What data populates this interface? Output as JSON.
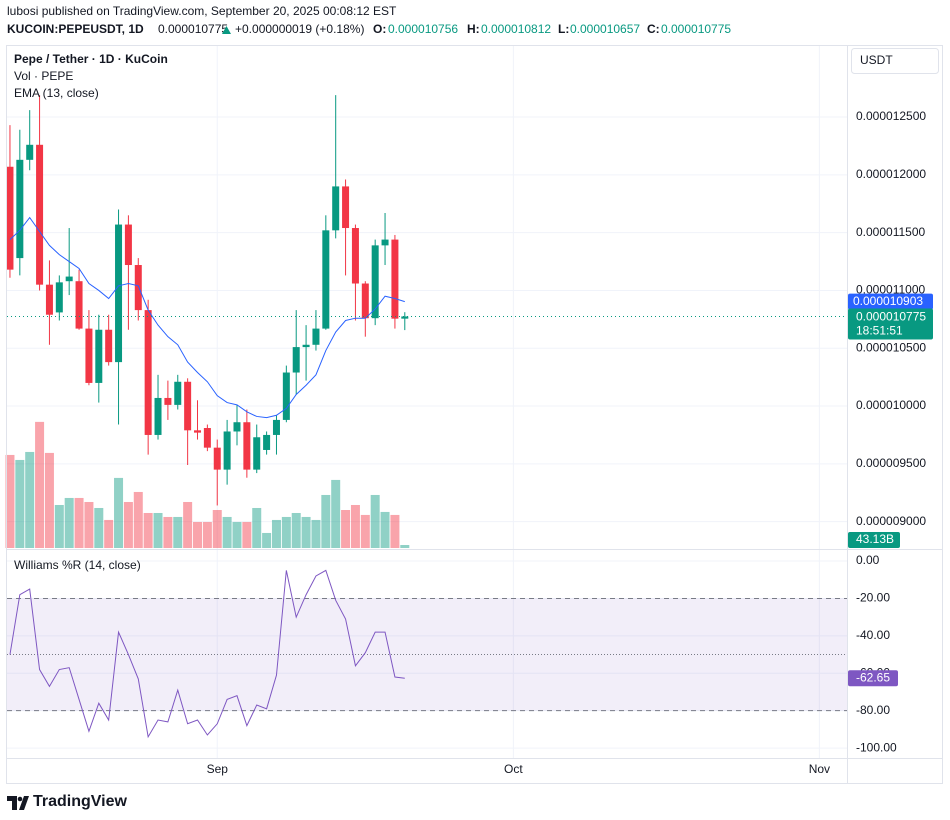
{
  "header": {
    "author_line": "lubosi published on TradingView.com, September 20, 2025 00:08:12 EST",
    "symbol": "KUCOIN:PEPEUSDT, 1D",
    "price": "0.000010775",
    "change": "+0.000000019 (+0.18%)",
    "ohlc": [
      {
        "key": "O:",
        "value": "0.000010756"
      },
      {
        "key": "H:",
        "value": "0.000010812"
      },
      {
        "key": "L:",
        "value": "0.000010657"
      },
      {
        "key": "C:",
        "value": "0.000010775"
      }
    ],
    "currency": "USDT",
    "brand": "TradingView"
  },
  "chart_data": [
    {
      "type": "candlestick",
      "title": "Pepe / Tether · 1D · KuCoin",
      "open": [
        1.207e-05,
        1.128e-05,
        1.213e-05,
        1.226e-05,
        1.105e-05,
        1.081e-05,
        1.108e-05,
        1.108e-05,
        1.067e-05,
        1.02e-05,
        1.066e-05,
        1.038e-05,
        1.157e-05,
        1.122e-05,
        1.083e-05,
        9.75e-06,
        1.007e-05,
        1.001e-05,
        1.021e-05,
        9.79e-06,
        9.81e-06,
        9.64e-06,
        9.45e-06,
        9.78e-06,
        9.86e-06,
        9.45e-06,
        9.62e-06,
        9.75e-06,
        9.88e-06,
        1.029e-05,
        1.051e-05,
        1.053e-05,
        1.067e-05,
        1.152e-05,
        1.19e-05,
        1.154e-05,
        1.106e-05,
        1.076e-05,
        1.139e-05,
        1.144e-05,
        1.0756e-05
      ],
      "high": [
        1.243e-05,
        1.239e-05,
        1.256e-05,
        1.269e-05,
        1.126e-05,
        1.113e-05,
        1.154e-05,
        1.118e-05,
        1.083e-05,
        1.079e-05,
        1.079e-05,
        1.17e-05,
        1.165e-05,
        1.128e-05,
        1.092e-05,
        1.027e-05,
        1.022e-05,
        1.027e-05,
        1.024e-05,
        1.005e-05,
        9.84e-06,
        9.71e-06,
        9.88e-06,
        1.001e-05,
        9.97e-06,
        9.84e-06,
        9.78e-06,
        9.92e-06,
        1.035e-05,
        1.083e-05,
        1.07e-05,
        1.083e-05,
        1.165e-05,
        1.269e-05,
        1.196e-05,
        1.157e-05,
        1.108e-05,
        1.144e-05,
        1.167e-05,
        1.148e-05,
        1.0812e-05
      ],
      "low": [
        1.111e-05,
        1.113e-05,
        1.204e-05,
        1.1e-05,
        1.053e-05,
        1.074e-05,
        1.096e-05,
        1.066e-05,
        1.018e-05,
        1.003e-05,
        1.035e-05,
        9.84e-06,
        1.066e-05,
        1.074e-05,
        9.58e-06,
        9.71e-06,
        9.88e-06,
        9.97e-06,
        9.49e-06,
        9.71e-06,
        9.61e-06,
        9.14e-06,
        9.32e-06,
        9.66e-06,
        9.38e-06,
        9.42e-06,
        9.58e-06,
        9.58e-06,
        9.86e-06,
        1.01e-05,
        1.022e-05,
        1.048e-05,
        1.066e-05,
        1.145e-05,
        1.113e-05,
        1.074e-05,
        1.06e-05,
        1.07e-05,
        1.122e-05,
        1.067e-05,
        1.0657e-05
      ],
      "close": [
        1.118e-05,
        1.213e-05,
        1.226e-05,
        1.105e-05,
        1.079e-05,
        1.107e-05,
        1.112e-05,
        1.067e-05,
        1.02e-05,
        1.066e-05,
        1.038e-05,
        1.157e-05,
        1.122e-05,
        1.083e-05,
        9.75e-06,
        1.007e-05,
        1.001e-05,
        1.021e-05,
        9.79e-06,
        9.77e-06,
        9.64e-06,
        9.45e-06,
        9.78e-06,
        9.86e-06,
        9.45e-06,
        9.73e-06,
        9.75e-06,
        9.88e-06,
        1.029e-05,
        1.051e-05,
        1.053e-05,
        1.067e-05,
        1.152e-05,
        1.19e-05,
        1.154e-05,
        1.106e-05,
        1.076e-05,
        1.139e-05,
        1.144e-05,
        1.0756e-05,
        1.0775e-05
      ],
      "close_label": "0.000010775",
      "countdown": "18:51:51",
      "up_color": "#089981",
      "down_color": "#f23645",
      "overlays": [
        {
          "name": "EMA (13, close)",
          "color": "#2962ff",
          "last_label": "0.000010903",
          "values": [
            1.144e-05,
            1.152e-05,
            1.163e-05,
            1.151e-05,
            1.139e-05,
            1.131e-05,
            1.125e-05,
            1.119e-05,
            1.106e-05,
            1.1e-05,
            1.093e-05,
            1.104e-05,
            1.106e-05,
            1.104e-05,
            1.083e-05,
            1.07e-05,
            1.06e-05,
            1.053e-05,
            1.038e-05,
            1.029e-05,
            1.021e-05,
            1.009e-05,
            1.003e-05,
            1.001e-05,
            9.95e-06,
            9.91e-06,
            9.9e-06,
            9.92e-06,
            9.98e-06,
            1.01e-05,
            1.018e-05,
            1.027e-05,
            1.048e-05,
            1.064e-05,
            1.074e-05,
            1.076e-05,
            1.076e-05,
            1.084e-05,
            1.095e-05,
            1.093e-05,
            1.0903e-05
          ]
        }
      ],
      "xlim": [
        -0.3,
        84.8
      ],
      "xticks": [
        {
          "value": 21,
          "label": "Sep"
        },
        {
          "value": 51,
          "label": "Oct"
        },
        {
          "value": 82,
          "label": "Nov"
        }
      ],
      "ylim": [
        8.772e-06,
        1.3106e-05
      ],
      "yticks": [
        {
          "value": 9e-06,
          "label": "0.000009000"
        },
        {
          "value": 9.5e-06,
          "label": "0.000009500"
        },
        {
          "value": 1e-05,
          "label": "0.000010000"
        },
        {
          "value": 1.05e-05,
          "label": "0.000010500"
        },
        {
          "value": 1.1e-05,
          "label": "0.000011000"
        },
        {
          "value": 1.15e-05,
          "label": "0.000011500"
        },
        {
          "value": 1.2e-05,
          "label": "0.000012000"
        },
        {
          "value": 1.25e-05,
          "label": "0.000012500"
        }
      ],
      "grid": true
    },
    {
      "type": "volume",
      "title": "Vol · PEPE",
      "values": [
        1337000000000.0,
        1265000000000.0,
        1380000000000.0,
        1812000000000.0,
        1366000000000.0,
        618000000000.0,
        719000000000.0,
        719000000000.0,
        661000000000.0,
        575000000000.0,
        403000000000.0,
        1007000000000.0,
        661000000000.0,
        805000000000.0,
        503000000000.0,
        503000000000.0,
        446000000000.0,
        446000000000.0,
        661000000000.0,
        374000000000.0,
        374000000000.0,
        546000000000.0,
        446000000000.0,
        374000000000.0,
        374000000000.0,
        575000000000.0,
        216000000000.0,
        403000000000.0,
        446000000000.0,
        503000000000.0,
        446000000000.0,
        403000000000.0,
        762000000000.0,
        978000000000.0,
        546000000000.0,
        618000000000.0,
        475000000000.0,
        762000000000.0,
        518000000000.0,
        475000000000.0,
        43130000000.0
      ],
      "last_label": "43.13B",
      "ylim": [
        0,
        5000000000000.0
      ],
      "opacity": 0.45
    },
    {
      "type": "line",
      "title": "Williams %R (14, close)",
      "color": "#7e57c2",
      "values": [
        -50,
        -18,
        -15,
        -58,
        -67,
        -58,
        -57,
        -74,
        -91,
        -76,
        -85,
        -38,
        -50,
        -63,
        -94,
        -85,
        -86,
        -69,
        -87,
        -85,
        -93,
        -87,
        -74,
        -72,
        -88,
        -77,
        -79,
        -61,
        -5,
        -30,
        -18,
        -8,
        -5,
        -21,
        -31,
        -56,
        -49,
        -38,
        -38,
        -62,
        -62.65
      ],
      "ylim": [
        -105.3,
        5.9
      ],
      "yticks": [
        {
          "value": 0,
          "label": "0.00"
        },
        {
          "value": -20,
          "label": "-20.00"
        },
        {
          "value": -40,
          "label": "-40.00"
        },
        {
          "value": -60,
          "label": "-60.00"
        },
        {
          "value": -80,
          "label": "-80.00"
        },
        {
          "value": -100,
          "label": "-100.00"
        }
      ],
      "band": [
        -80,
        -20
      ],
      "midline": -50,
      "grid": true
    }
  ]
}
